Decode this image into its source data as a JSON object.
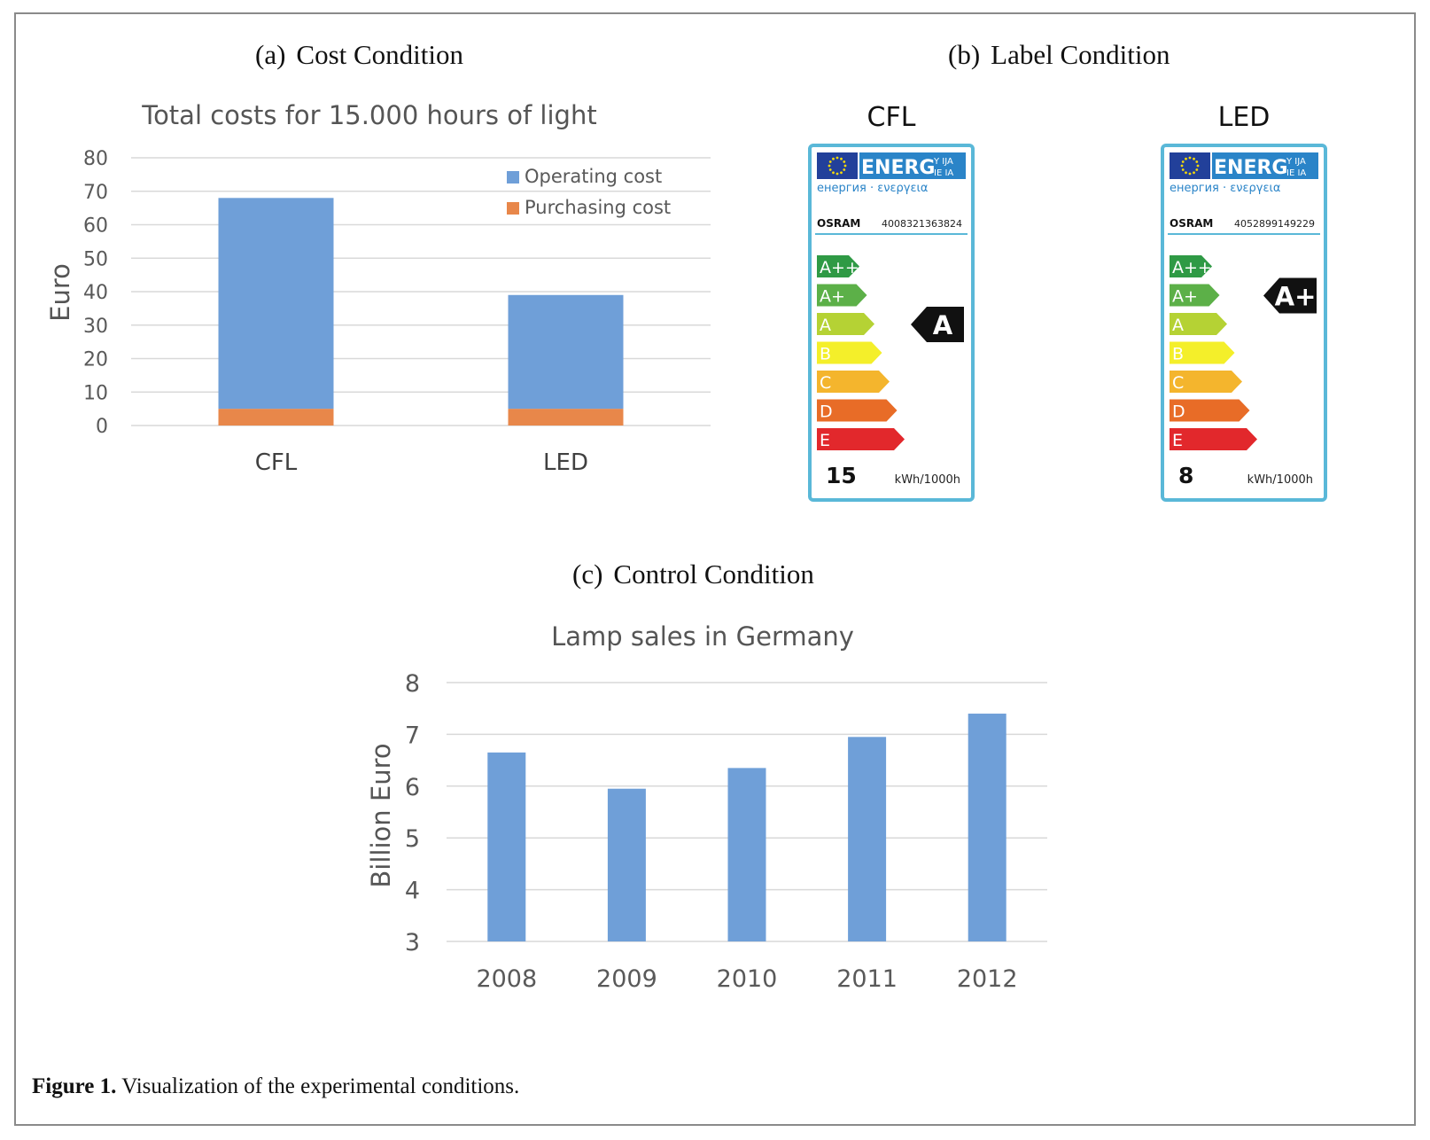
{
  "panels": {
    "a": {
      "label": "(a)",
      "title": "Cost Condition"
    },
    "b": {
      "label": "(b)",
      "title": "Label Condition"
    },
    "c": {
      "label": "(c)",
      "title": "Control Condition"
    }
  },
  "chart_data": [
    {
      "id": "cost",
      "type": "bar",
      "stacked": true,
      "title": "Total costs for 15.000 hours of light",
      "ylabel": "Euro",
      "xlabel": "",
      "categories": [
        "CFL",
        "LED"
      ],
      "series": [
        {
          "name": "Operating cost",
          "color": "#6f9fd8",
          "values": [
            63,
            34
          ]
        },
        {
          "name": "Purchasing cost",
          "color": "#e8874a",
          "values": [
            5,
            5
          ]
        }
      ],
      "ylim": [
        0,
        80
      ],
      "yticks": [
        0,
        10,
        20,
        30,
        40,
        50,
        60,
        70,
        80
      ],
      "grid": true,
      "legend": "top-right"
    },
    {
      "id": "sales",
      "type": "bar",
      "title": "Lamp sales in Germany",
      "ylabel": "Billion Euro",
      "xlabel": "",
      "categories": [
        "2008",
        "2009",
        "2010",
        "2011",
        "2012"
      ],
      "series": [
        {
          "name": "Lamp sales",
          "color": "#6f9fd8",
          "values": [
            6.65,
            5.95,
            6.35,
            6.95,
            7.4
          ]
        }
      ],
      "ylim": [
        3,
        8
      ],
      "yticks": [
        3,
        4,
        5,
        6,
        7,
        8
      ],
      "grid": true
    }
  ],
  "energy_labels": [
    {
      "heading": "CFL",
      "brand": "OSRAM",
      "code": "4008321363824",
      "energy_word": "ENERG",
      "energy_suffix_top": "Y IJA",
      "energy_suffix_bottom": "IE IA",
      "energy_subtitle": "енергия · ενεργεια",
      "classes": [
        "A++",
        "A+",
        "A",
        "B",
        "C",
        "D",
        "E"
      ],
      "rating": "A",
      "consumption": "15",
      "unit": "kWh/1000h"
    },
    {
      "heading": "LED",
      "brand": "OSRAM",
      "code": "4052899149229",
      "energy_word": "ENERG",
      "energy_suffix_top": "Y IJA",
      "energy_suffix_bottom": "IE IA",
      "energy_subtitle": "енергия · ενεργεια",
      "classes": [
        "A++",
        "A+",
        "A",
        "B",
        "C",
        "D",
        "E"
      ],
      "rating": "A+",
      "consumption": "8",
      "unit": "kWh/1000h"
    }
  ],
  "class_colors": [
    "#2f9a45",
    "#5cb048",
    "#b5d234",
    "#f4ef2a",
    "#f4b52d",
    "#e86c27",
    "#e2282c"
  ],
  "caption": {
    "label": "Figure 1.",
    "text": "Visualization of the experimental conditions."
  }
}
